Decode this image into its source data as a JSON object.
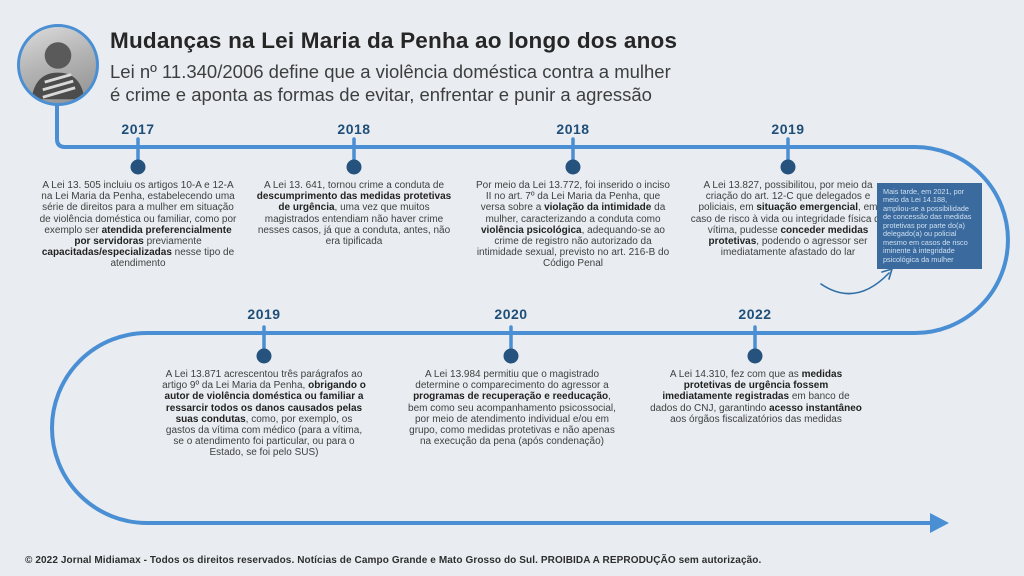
{
  "colors": {
    "background": "#e9edf1",
    "timeline_line": "#4a8fd4",
    "timeline_dot": "#26527e",
    "year_label": "#1f4e79",
    "body_text": "#3f3f3f",
    "callout_background": "#3a6a9e",
    "callout_text": "#cfe0f0"
  },
  "header": {
    "title": "Mudanças na Lei Maria da Penha ao longo dos anos",
    "subtitle_line1": "Lei nº 11.340/2006 define que a violência doméstica contra a mulher",
    "subtitle_line2": "é crime e aponta as formas de evitar, enfrentar e punir a agressão"
  },
  "timeline": {
    "entries": [
      {
        "year": "2017",
        "segments": [
          {
            "t": "A Lei 13. 505 incluiu os artigos 10-A e 12-A na Lei Maria da Penha, estabelecendo uma série de direitos para a mulher em situação de violência doméstica ou familiar, como por exemplo ser ",
            "b": false
          },
          {
            "t": "atendida preferencialmente por servidoras",
            "b": true
          },
          {
            "t": " previamente ",
            "b": false
          },
          {
            "t": "capacitadas/especializadas",
            "b": true
          },
          {
            "t": " nesse tipo de atendimento",
            "b": false
          }
        ]
      },
      {
        "year": "2018",
        "segments": [
          {
            "t": "A Lei 13. 641, tornou crime a conduta de ",
            "b": false
          },
          {
            "t": "descumprimento das medidas protetivas de urgência",
            "b": true
          },
          {
            "t": ", uma vez que muitos magistrados entendiam não haver crime nesses casos, já que a conduta, antes, não era tipificada",
            "b": false
          }
        ]
      },
      {
        "year": "2018",
        "segments": [
          {
            "t": "Por meio da Lei 13.772, foi inserido o inciso II no art. 7º da Lei Maria da Penha, que versa sobre a ",
            "b": false
          },
          {
            "t": "violação da intimidade",
            "b": true
          },
          {
            "t": " da mulher, caracterizando a conduta como ",
            "b": false
          },
          {
            "t": "violência psicológica",
            "b": true
          },
          {
            "t": ", adequando-se ao crime de registro não autorizado da intimidade sexual, previsto no art. 216-B do Código Penal",
            "b": false
          }
        ]
      },
      {
        "year": "2019",
        "segments": [
          {
            "t": "A Lei 13.827, possibilitou, por meio da criação do art. 12-C que delegados e policiais, em ",
            "b": false
          },
          {
            "t": "situação emergencial",
            "b": true
          },
          {
            "t": ", em caso de risco à vida ou integridade física da vítima, pudesse ",
            "b": false
          },
          {
            "t": "conceder medidas protetivas",
            "b": true
          },
          {
            "t": ", podendo o agressor ser imediatamente afastado do lar",
            "b": false
          }
        ]
      },
      {
        "year": "2019",
        "segments": [
          {
            "t": "A Lei 13.871 acrescentou três parágrafos ao artigo 9º da Lei Maria da Penha, ",
            "b": false
          },
          {
            "t": "obrigando o autor de violência doméstica ou familiar a ressarcir todos os danos causados pelas suas condutas",
            "b": true
          },
          {
            "t": ", como, por exemplo, os gastos da vítima com médico (para a vítima, se o atendimento foi particular, ou para o Estado, se foi pelo SUS)",
            "b": false
          }
        ]
      },
      {
        "year": "2020",
        "segments": [
          {
            "t": "A Lei 13.984 permitiu que o magistrado determine o comparecimento do agressor a ",
            "b": false
          },
          {
            "t": "programas de recuperação e reeducação",
            "b": true
          },
          {
            "t": ", bem como seu acompanhamento psicossocial, por meio de atendimento individual e/ou em grupo, como medidas protetivas e não apenas na execução da pena (após condenação)",
            "b": false
          }
        ]
      },
      {
        "year": "2022",
        "segments": [
          {
            "t": "A Lei 14.310, fez com que as ",
            "b": false
          },
          {
            "t": "medidas protetivas de urgência fossem imediatamente registradas",
            "b": true
          },
          {
            "t": " em banco de dados do CNJ, garantindo ",
            "b": false
          },
          {
            "t": "acesso instantâneo",
            "b": true
          },
          {
            "t": " aos órgãos fiscalizatórios das medidas",
            "b": false
          }
        ]
      }
    ],
    "callout": {
      "text": "Mais tarde, em 2021, por meio da Lei 14.188, ampliou-se a possibilidade de concessão das medidas protetivas por parte do(a) delegado(a) ou policial mesmo em casos de risco iminente à integridade psicológica da mulher"
    }
  },
  "footer": {
    "text": "© 2022 Jornal Midiamax - Todos os direitos reservados. Notícias de Campo Grande e Mato Grosso do Sul. PROIBIDA A REPRODUÇÃO sem autorização."
  }
}
